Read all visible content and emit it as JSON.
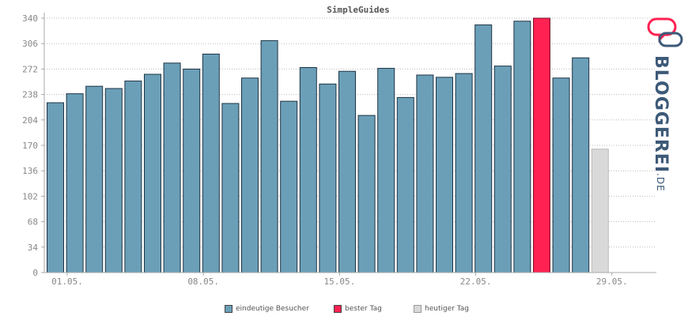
{
  "chart_data": {
    "type": "bar",
    "title": "SimpleGuides",
    "x_tick_labels": [
      "01.05.",
      "08.05.",
      "15.05.",
      "22.05.",
      "29.05."
    ],
    "x_tick_days": [
      1,
      8,
      15,
      22,
      29
    ],
    "y_ticks": [
      0,
      34,
      68,
      102,
      136,
      170,
      204,
      238,
      272,
      306,
      340
    ],
    "ylim": [
      0,
      340
    ],
    "grid": true,
    "days": [
      1,
      2,
      3,
      4,
      5,
      6,
      7,
      8,
      9,
      10,
      11,
      12,
      13,
      14,
      15,
      16,
      17,
      18,
      19,
      20,
      21,
      22,
      23,
      24,
      25,
      26,
      27,
      28
    ],
    "values": [
      227,
      239,
      249,
      246,
      256,
      265,
      280,
      272,
      292,
      226,
      260,
      310,
      229,
      274,
      252,
      269,
      210,
      273,
      234,
      264,
      261,
      266,
      331,
      276,
      336,
      340,
      260,
      287
    ],
    "highlight_index": 25,
    "today_day": 29,
    "today_value": 165,
    "colors": {
      "eindeutige_besucher": "#6b9fb8",
      "bester_tag": "#ff2152",
      "heutiger_tag": "#d9d9d9",
      "grid": "#bbbbbb"
    }
  },
  "legend": {
    "visitors_label": "eindeutige Besucher",
    "best_label": "bester Tag",
    "today_label": "heutiger Tag"
  },
  "logo": {
    "text": "BLOGGEREI",
    "suffix": ".DE"
  }
}
